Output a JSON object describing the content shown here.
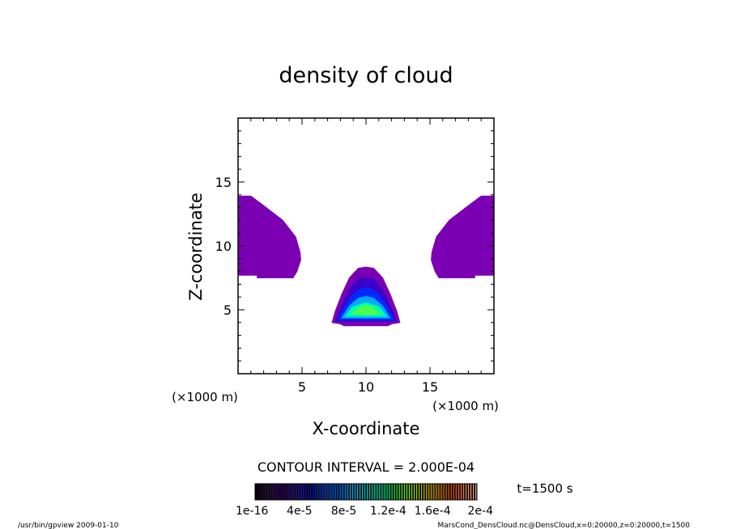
{
  "chart_data": {
    "type": "heatmap",
    "title": "density of cloud",
    "xlabel": "X-coordinate",
    "ylabel": "Z-coordinate",
    "x_unit": "(×1000 m)",
    "y_unit": "(×1000 m)",
    "xlim": [
      0,
      20
    ],
    "ylim": [
      0,
      20
    ],
    "x_ticks": [
      5,
      10,
      15
    ],
    "y_ticks": [
      5,
      10,
      15
    ],
    "x_tick_labels": [
      "5",
      "10",
      "15"
    ],
    "y_tick_labels": [
      "5",
      "10",
      "15"
    ],
    "contour_interval_text": "CONTOUR INTERVAL = 2.000E-04",
    "time_text": "t=1500 s",
    "colorbar_labels": [
      "1e-16",
      "4e-5",
      "8e-5",
      "1.2e-4",
      "1.6e-4",
      "2e-4"
    ],
    "colorbar_range": [
      0,
      0.0002
    ],
    "regions": [
      {
        "name": "upper-left cloud",
        "level": 1e-16,
        "color": "#7b00b4",
        "outline": [
          [
            0,
            13.9
          ],
          [
            1,
            13.9
          ],
          [
            2.2,
            13.0
          ],
          [
            3.5,
            12.0
          ],
          [
            4.5,
            10.7
          ],
          [
            4.85,
            9.5
          ],
          [
            4.9,
            8.9
          ],
          [
            4.6,
            8.0
          ],
          [
            4.3,
            7.5
          ],
          [
            1.5,
            7.5
          ],
          [
            1.5,
            7.7
          ],
          [
            0,
            7.7
          ]
        ]
      },
      {
        "name": "upper-right cloud",
        "level": 1e-16,
        "color": "#7b00b4",
        "outline": [
          [
            20,
            13.9
          ],
          [
            19,
            13.9
          ],
          [
            17.8,
            13.0
          ],
          [
            16.5,
            12.0
          ],
          [
            15.5,
            10.7
          ],
          [
            15.15,
            9.5
          ],
          [
            15.1,
            8.9
          ],
          [
            15.4,
            8.0
          ],
          [
            15.7,
            7.5
          ],
          [
            18.5,
            7.5
          ],
          [
            18.5,
            7.7
          ],
          [
            20,
            7.7
          ]
        ]
      },
      {
        "name": "central cloud",
        "peak_x": 10,
        "peak_z": 5.4,
        "peak_value": 8.5e-05,
        "layers": [
          {
            "level": 1e-16,
            "color": "#7b00b4",
            "outline": [
              [
                7.35,
                4.0
              ],
              [
                7.6,
                4.9
              ],
              [
                8.1,
                6.2
              ],
              [
                8.7,
                7.5
              ],
              [
                9.4,
                8.25
              ],
              [
                10,
                8.35
              ],
              [
                10.6,
                8.25
              ],
              [
                11.3,
                7.5
              ],
              [
                11.9,
                6.2
              ],
              [
                12.4,
                4.9
              ],
              [
                12.65,
                4.0
              ],
              [
                12.0,
                3.9
              ],
              [
                11.7,
                3.75
              ],
              [
                8.3,
                3.75
              ],
              [
                8.0,
                3.9
              ]
            ]
          },
          {
            "level": 1.5e-05,
            "color": "#3c00c8",
            "outline": [
              [
                7.6,
                4.1
              ],
              [
                8.1,
                5.3
              ],
              [
                8.7,
                6.6
              ],
              [
                9.4,
                7.4
              ],
              [
                10,
                7.55
              ],
              [
                10.6,
                7.4
              ],
              [
                11.3,
                6.6
              ],
              [
                11.9,
                5.3
              ],
              [
                12.4,
                4.1
              ]
            ]
          },
          {
            "level": 3e-05,
            "color": "#0028ff",
            "outline": [
              [
                7.8,
                4.2
              ],
              [
                8.3,
                5.2
              ],
              [
                8.9,
                6.1
              ],
              [
                9.5,
                6.6
              ],
              [
                10,
                6.75
              ],
              [
                10.5,
                6.6
              ],
              [
                11.1,
                6.1
              ],
              [
                11.7,
                5.2
              ],
              [
                12.2,
                4.2
              ]
            ]
          },
          {
            "level": 5e-05,
            "color": "#00aaff",
            "outline": [
              [
                8.1,
                4.35
              ],
              [
                8.7,
                5.3
              ],
              [
                9.4,
                5.9
              ],
              [
                10,
                6.05
              ],
              [
                10.6,
                5.9
              ],
              [
                11.3,
                5.3
              ],
              [
                11.9,
                4.35
              ]
            ]
          },
          {
            "level": 7e-05,
            "color": "#00ffaa",
            "outline": [
              [
                8.4,
                4.5
              ],
              [
                9.0,
                5.25
              ],
              [
                10,
                5.55
              ],
              [
                11.0,
                5.25
              ],
              [
                11.6,
                4.5
              ]
            ]
          },
          {
            "level": 8e-05,
            "color": "#4cff4c",
            "outline": [
              [
                8.9,
                4.65
              ],
              [
                9.5,
                5.2
              ],
              [
                10,
                5.35
              ],
              [
                10.5,
                5.2
              ],
              [
                11.1,
                4.65
              ]
            ]
          }
        ]
      }
    ]
  },
  "footer": {
    "left_text": "/usr/bin/gpview  2009-01-10",
    "right_text": "MarsCond_DensCloud.nc@DensCloud,x=0:20000,z=0:20000,t=1500"
  }
}
